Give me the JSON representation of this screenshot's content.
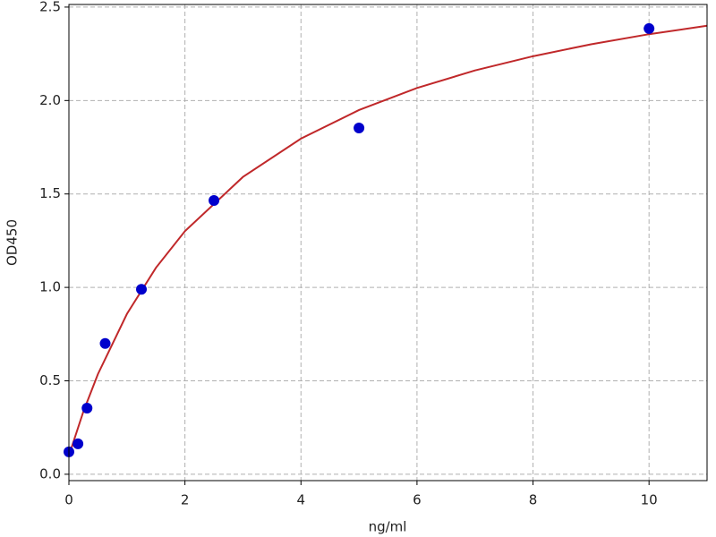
{
  "chart_data": {
    "type": "scatter",
    "xlabel": "ng/ml",
    "ylabel": "OD450",
    "xlim": [
      0,
      11
    ],
    "ylim": [
      -0.034,
      2.514
    ],
    "xticks": [
      0,
      2,
      4,
      6,
      8,
      10
    ],
    "yticks": [
      {
        "value": 0,
        "label": "0.0"
      },
      0.5,
      {
        "value": 1,
        "label": "1.0"
      },
      1.5,
      {
        "value": 2,
        "label": "2.0"
      },
      2.5
    ],
    "grid": true,
    "points": {
      "color": "#0000cc",
      "x": [
        0,
        0.156,
        0.3125,
        0.625,
        1.25,
        2.5,
        5,
        10
      ],
      "y": [
        0.12,
        0.163,
        0.354,
        0.7,
        0.99,
        1.465,
        1.853,
        2.385
      ]
    },
    "fit": {
      "color": "#c0282a",
      "x": [
        0,
        0.25,
        0.5,
        1,
        1.5,
        2,
        3,
        4,
        5,
        6,
        7,
        8,
        9,
        10,
        11
      ],
      "y": [
        0.1,
        0.336,
        0.536,
        0.858,
        1.105,
        1.301,
        1.591,
        1.796,
        1.949,
        2.067,
        2.161,
        2.237,
        2.301,
        2.355,
        2.4
      ]
    }
  }
}
